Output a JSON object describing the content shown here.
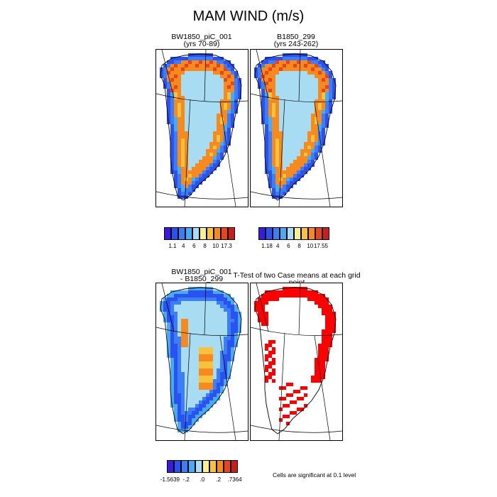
{
  "title": "MAM WIND (m/s)",
  "panels": {
    "p1": {
      "line1": "BW1850_piC_001",
      "line2": "(yrs 70-89)"
    },
    "p2": {
      "line1": "B1850_299",
      "line2": "(yrs 243-262)"
    },
    "p3": {
      "line1": "BW1850_piC_001",
      "line2": "- B1850_299"
    },
    "p4": {
      "line1": "T-Test of two Case means at each grid point"
    }
  },
  "colorbars": {
    "cb1": {
      "colors": [
        "#3a1ae0",
        "#2a52f0",
        "#3c7ef5",
        "#46aaf5",
        "#a8dcf2",
        "#f8f08c",
        "#f8c23c",
        "#f68a1e",
        "#e8441e",
        "#c81e1e"
      ],
      "labels": [
        "1.1",
        "4",
        "6",
        "8",
        "10",
        "17.3"
      ]
    },
    "cb2": {
      "colors": [
        "#3a1ae0",
        "#2a52f0",
        "#3c7ef5",
        "#46aaf5",
        "#a8dcf2",
        "#f8f08c",
        "#f8c23c",
        "#f68a1e",
        "#e8441e",
        "#c81e1e"
      ],
      "labels": [
        "1.18",
        "4",
        "6",
        "8",
        "10",
        "17.55"
      ]
    },
    "cb3": {
      "colors": [
        "#3a1ae0",
        "#2a52f0",
        "#3c7ef5",
        "#46aaf5",
        "#a8dcf2",
        "#f8f08c",
        "#f8c23c",
        "#f68a1e",
        "#e8441e",
        "#c81e1e"
      ],
      "labels": [
        "-1.5639",
        "-.2",
        ".0",
        ".2",
        ".7364"
      ]
    }
  },
  "significance_note": "Cells are significant at 0.1 level",
  "chart_data": [
    {
      "type": "heatmap",
      "title": "BW1850_piC_001 (yrs 70-89)",
      "variable": "MAM WIND",
      "units": "m/s",
      "range": [
        1.1,
        17.3
      ]
    },
    {
      "type": "heatmap",
      "title": "B1850_299 (yrs 243-262)",
      "variable": "MAM WIND",
      "units": "m/s",
      "range": [
        1.18,
        17.55
      ]
    },
    {
      "type": "heatmap",
      "title": "BW1850_piC_001 - B1850_299",
      "variable": "MAM WIND difference",
      "units": "m/s",
      "range": [
        -1.5639,
        0.7364
      ]
    },
    {
      "type": "heatmap",
      "title": "T-Test of two Case means at each grid point",
      "note": "Cells are significant at 0.1 level",
      "significant_color": "#ff0000"
    }
  ]
}
